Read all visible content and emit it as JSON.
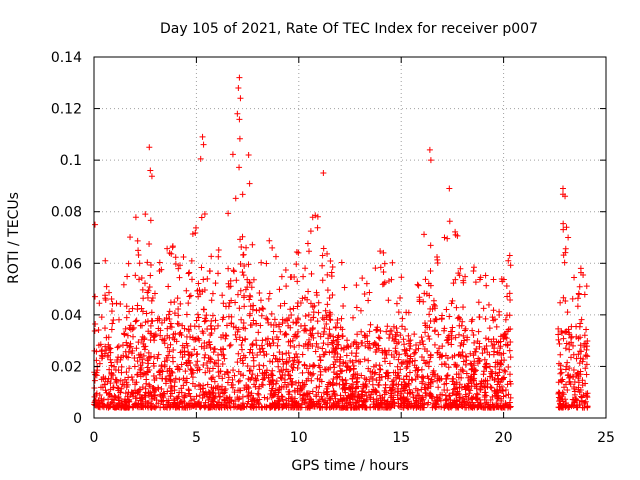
{
  "chart_data": {
    "type": "scatter",
    "title": "Day 105 of 2021, Rate Of TEC Index for receiver p007",
    "xlabel": "GPS time / hours",
    "ylabel": "ROTI / TECUs",
    "xlim": [
      0,
      25
    ],
    "ylim": [
      0,
      0.14
    ],
    "xticks": [
      "0",
      "5",
      "10",
      "15",
      "20",
      "25"
    ],
    "yticks": [
      "0",
      "0.02",
      "0.04",
      "0.06",
      "0.08",
      "0.1",
      "0.12",
      "0.14"
    ],
    "grid": true,
    "marker": "plus",
    "color": "#ff0000",
    "gaps": [
      [
        20.35,
        22.65
      ]
    ],
    "envelope": [
      [
        0.0,
        0.072
      ],
      [
        0.3,
        0.045
      ],
      [
        0.6,
        0.06
      ],
      [
        1.0,
        0.042
      ],
      [
        1.5,
        0.058
      ],
      [
        1.8,
        0.076
      ],
      [
        2.2,
        0.08
      ],
      [
        2.7,
        0.105
      ],
      [
        3.2,
        0.068
      ],
      [
        3.7,
        0.07
      ],
      [
        4.2,
        0.064
      ],
      [
        4.7,
        0.06
      ],
      [
        5.2,
        0.109
      ],
      [
        5.6,
        0.07
      ],
      [
        6.0,
        0.06
      ],
      [
        6.5,
        0.09
      ],
      [
        7.0,
        0.132
      ],
      [
        7.5,
        0.102
      ],
      [
        8.0,
        0.08
      ],
      [
        8.5,
        0.075
      ],
      [
        9.0,
        0.07
      ],
      [
        9.5,
        0.068
      ],
      [
        10.0,
        0.066
      ],
      [
        10.5,
        0.07
      ],
      [
        11.0,
        0.093
      ],
      [
        11.5,
        0.072
      ],
      [
        12.0,
        0.062
      ],
      [
        12.5,
        0.055
      ],
      [
        13.0,
        0.058
      ],
      [
        13.5,
        0.054
      ],
      [
        14.0,
        0.066
      ],
      [
        14.5,
        0.06
      ],
      [
        15.0,
        0.064
      ],
      [
        15.5,
        0.055
      ],
      [
        16.0,
        0.06
      ],
      [
        16.4,
        0.104
      ],
      [
        16.8,
        0.065
      ],
      [
        17.3,
        0.089
      ],
      [
        17.8,
        0.069
      ],
      [
        18.3,
        0.065
      ],
      [
        18.8,
        0.063
      ],
      [
        19.3,
        0.055
      ],
      [
        19.8,
        0.053
      ],
      [
        20.3,
        0.063
      ],
      [
        22.7,
        0.062
      ],
      [
        22.9,
        0.089
      ],
      [
        23.2,
        0.072
      ],
      [
        23.6,
        0.055
      ],
      [
        24.0,
        0.064
      ]
    ],
    "peaks": [
      [
        0.05,
        0.075
      ],
      [
        0.55,
        0.061
      ],
      [
        2.7,
        0.105
      ],
      [
        2.75,
        0.096
      ],
      [
        5.3,
        0.109
      ],
      [
        5.35,
        0.106
      ],
      [
        7.1,
        0.132
      ],
      [
        7.05,
        0.128
      ],
      [
        7.15,
        0.124
      ],
      [
        7.0,
        0.118
      ],
      [
        7.55,
        0.102
      ],
      [
        11.2,
        0.095
      ],
      [
        16.4,
        0.104
      ],
      [
        16.45,
        0.1
      ],
      [
        17.35,
        0.089
      ],
      [
        22.9,
        0.089
      ],
      [
        23.0,
        0.086
      ],
      [
        23.15,
        0.07
      ],
      [
        20.3,
        0.063
      ]
    ]
  }
}
